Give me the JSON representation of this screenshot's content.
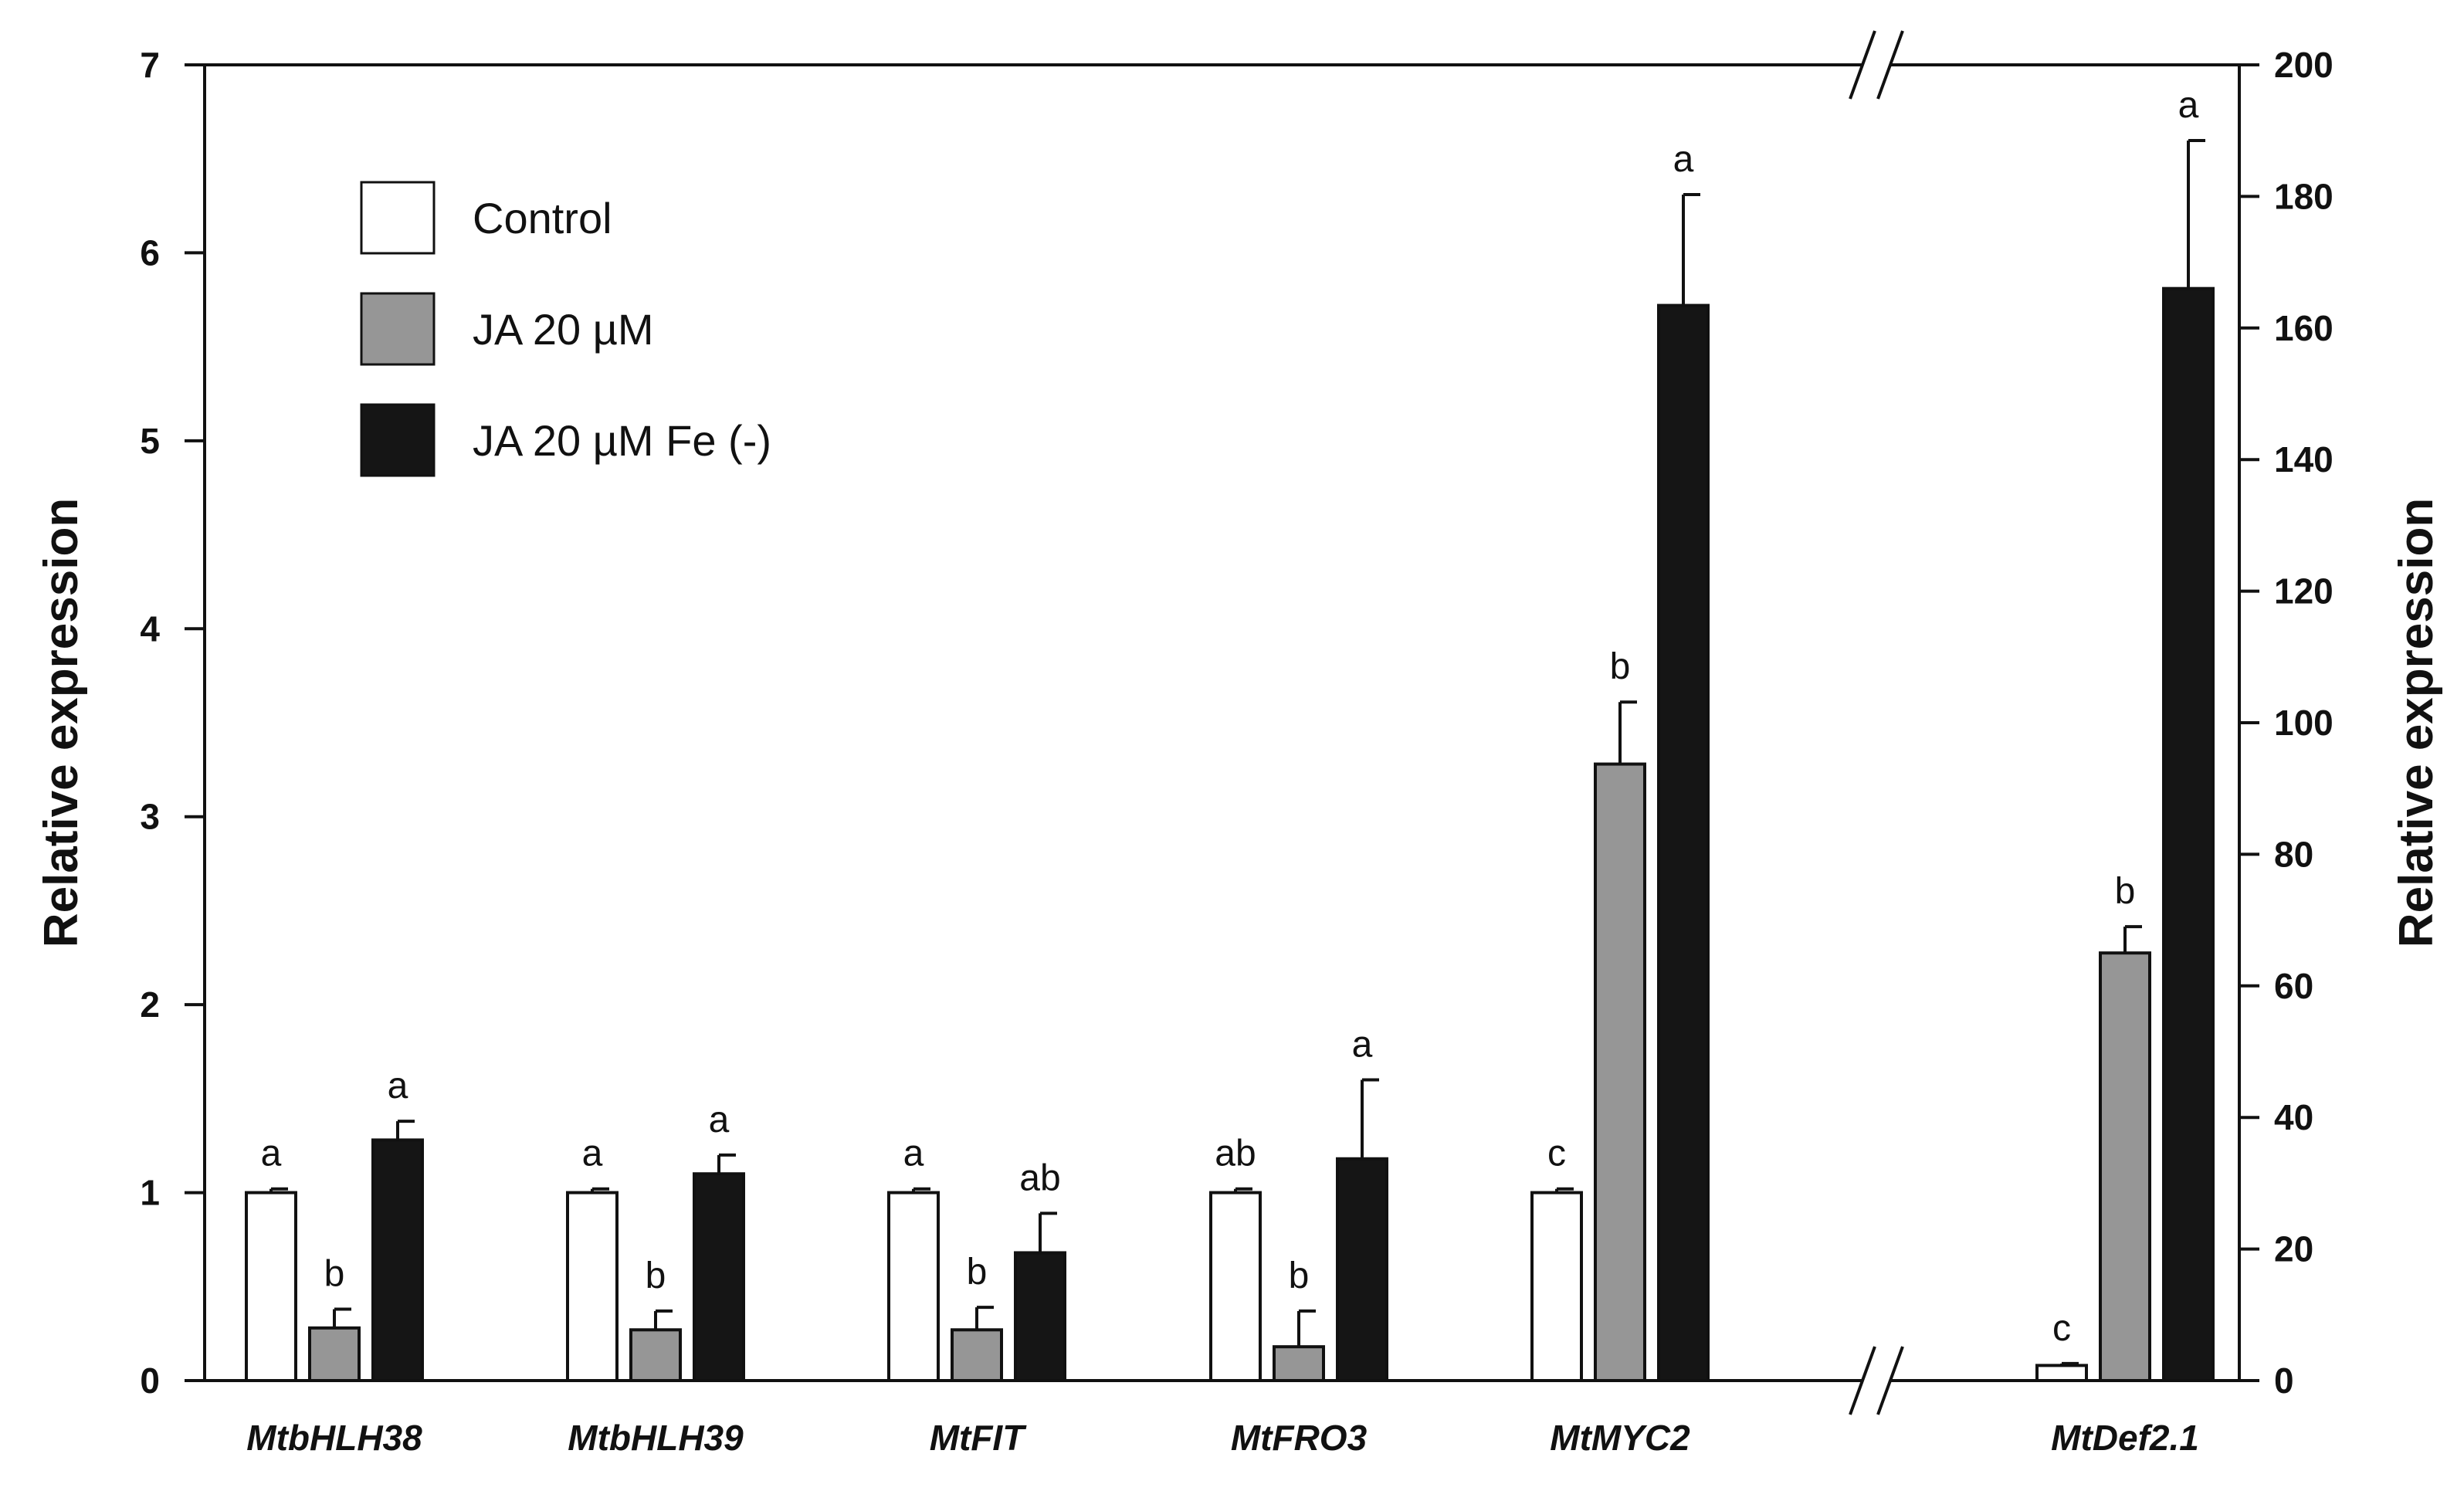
{
  "chart_data": {
    "type": "bar",
    "title": "",
    "xlabel": "",
    "ylabel": "Relative expression",
    "ylabel_right": "Relative expression",
    "ylim": [
      0,
      7
    ],
    "ylim_right": [
      0,
      200
    ],
    "yticks": [
      "0",
      "1",
      "2",
      "3",
      "4",
      "5",
      "6",
      "7"
    ],
    "yticks_right": [
      "0",
      "20",
      "40",
      "60",
      "80",
      "100",
      "120",
      "140",
      "160",
      "180",
      "200"
    ],
    "categories": [
      "MtbHLH38",
      "MtbHLH39",
      "MtFIT",
      "MtFRO3",
      "MtMYC2",
      "MtDef2.1"
    ],
    "category_axis": [
      "left",
      "left",
      "left",
      "left",
      "left",
      "right"
    ],
    "axis_break": "between MtMYC2 and MtDef2.1",
    "series": [
      {
        "name": "Control",
        "color": "#ffffff",
        "values": [
          1.0,
          1.0,
          1.0,
          1.0,
          1.0,
          2.3
        ],
        "errors": [
          0.02,
          0.02,
          0.02,
          0.02,
          0.02,
          0.3
        ],
        "letters": [
          "a",
          "a",
          "a",
          "ab",
          "c",
          "c"
        ]
      },
      {
        "name": "JA 20 µM",
        "color": "#969696",
        "values": [
          0.28,
          0.27,
          0.27,
          0.18,
          3.28,
          65
        ],
        "errors": [
          0.1,
          0.1,
          0.12,
          0.19,
          0.33,
          4
        ],
        "letters": [
          "b",
          "b",
          "b",
          "b",
          "b",
          "b"
        ]
      },
      {
        "name": "JA 20 µM Fe (-)",
        "color": "#151515",
        "values": [
          1.28,
          1.1,
          0.68,
          1.18,
          5.72,
          166
        ],
        "errors": [
          0.1,
          0.1,
          0.21,
          0.42,
          0.59,
          22.5
        ],
        "letters": [
          "a",
          "a",
          "ab",
          "a",
          "a",
          "a"
        ]
      }
    ],
    "legend": {
      "position": "top-left",
      "entries": [
        "Control",
        "JA 20 µM",
        "JA 20 µM Fe (-)"
      ]
    }
  }
}
